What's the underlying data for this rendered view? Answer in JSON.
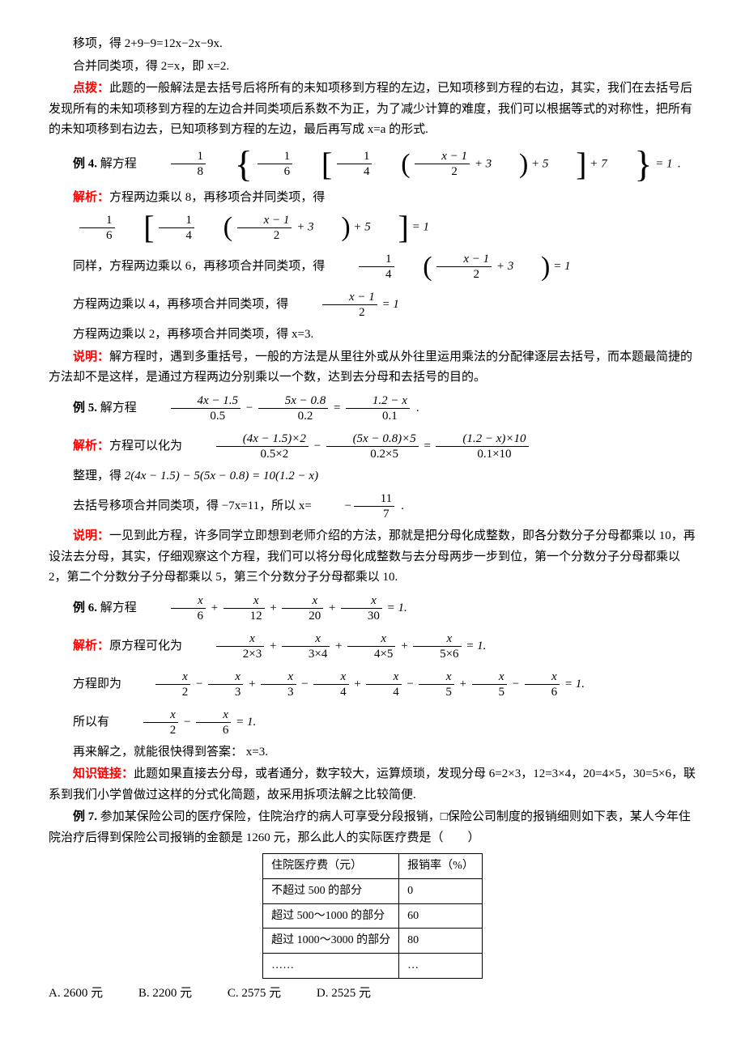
{
  "p1": "移项，得 2+9−9=12x−2x−9x.",
  "p2": "合并同类项，得 2=x，即 x=2.",
  "dianbo_label": "点拨：",
  "dianbo_text": "此题的一般解法是去括号后将所有的未知项移到方程的左边，已知项移到方程的右边，其实，我们在去括号后发现所有的未知项移到方程的左边合并同类项后系数不为正，为了减少计算的难度，我们可以根据等式的对称性，把所有的未知项移到右边去，已知项移到方程的左边，最后再写成 x=a 的形式.",
  "ex4_label": "例 4.",
  "ex4_text": " 解方程 ",
  "ex4_eq_suffix": "= 1",
  "ex4_frac18_n": "1",
  "ex4_frac18_d": "8",
  "ex4_frac16_n": "1",
  "ex4_frac16_d": "6",
  "ex4_frac14_n": "1",
  "ex4_frac14_d": "4",
  "ex4_frac_x_n": "x − 1",
  "ex4_frac_x_d": "2",
  "ex4_plus3": "+ 3",
  "ex4_plus5": "+ 5",
  "ex4_plus7": "+ 7",
  "ex4_dot": ".",
  "jiexi_label": "解析：",
  "ex4_s1_text": "方程两边乘以 8，再移项合并同类项，得 ",
  "ex4_s2_text": "同样，方程两边乘以 6，再移项合并同类项，得 ",
  "ex4_s3_text": "方程两边乘以 4，再移项合并同类项，得 ",
  "ex4_s4_text": "方程两边乘以 2，再移项合并同类项，得 x=3.",
  "shuoming_label": "说明：",
  "ex4_shuoming": "解方程时，遇到多重括号，一般的方法是从里往外或从外往里运用乘法的分配律逐层去括号，而本题最简捷的方法却不是这样，是通过方程两边分别乘以一个数，达到去分母和去括号的目的。",
  "ex5_label": "例 5.",
  "ex5_text": " 解方程 ",
  "ex5_f1_n": "4x − 1.5",
  "ex5_f1_d": "0.5",
  "ex5_f2_n": "5x − 0.8",
  "ex5_f2_d": "0.2",
  "ex5_f3_n": "1.2 − x",
  "ex5_f3_d": "0.1",
  "ex5_minus": " − ",
  "ex5_eq": " = ",
  "ex5_dot": ".",
  "ex5_s1_text": "方程可以化为 ",
  "ex5_g1_n": "(4x − 1.5)×2",
  "ex5_g1_d": "0.5×2",
  "ex5_g2_n": "(5x − 0.8)×5",
  "ex5_g2_d": "0.2×5",
  "ex5_g3_n": "(1.2 − x)×10",
  "ex5_g3_d": "0.1×10",
  "ex5_s2_pre": "整理，得 ",
  "ex5_s2_eq": "2(4x − 1.5) − 5(5x − 0.8) = 10(1.2 − x)",
  "ex5_s3_text": "去括号移项合并同类项，得 −7x=11，所以 x= ",
  "ex5_ans_n": "11",
  "ex5_ans_d": "7",
  "ex5_neg": "−",
  "ex5_s3_dot": ".",
  "ex5_shuoming": "一见到此方程，许多同学立即想到老师介绍的方法，那就是把分母化成整数，即各分数分子分母都乘以 10，再设法去分母，其实，仔细观察这个方程，我们可以将分母化成整数与去分母两步一步到位，第一个分数分子分母都乘以 2，第二个分数分子分母都乘以 5，第三个分数分子分母都乘以 10.",
  "ex6_label": "例 6.",
  "ex6_text": " 解方程 ",
  "ex6_f1_n": "x",
  "ex6_f1_d": "6",
  "ex6_f2_n": "x",
  "ex6_f2_d": "12",
  "ex6_f3_n": "x",
  "ex6_f3_d": "20",
  "ex6_f4_n": "x",
  "ex6_f4_d": "30",
  "ex6_plus": " + ",
  "ex6_eq1": " = 1.",
  "ex6_s1_text": "原方程可化为 ",
  "ex6_g1_d": "2×3",
  "ex6_g2_d": "3×4",
  "ex6_g3_d": "4×5",
  "ex6_g4_d": "5×6",
  "ex6_s2_text": "方程即为 ",
  "ex6_h1_d": "2",
  "ex6_h2_d": "3",
  "ex6_h3_d": "3",
  "ex6_h4_d": "4",
  "ex6_h5_d": "4",
  "ex6_h6_d": "5",
  "ex6_h7_d": "5",
  "ex6_h8_d": "6",
  "ex6_minus": " − ",
  "ex6_s3_text": "所以有 ",
  "ex6_s4_text": "再来解之，就能很快得到答案： x=3.",
  "zhishi_label": "知识链接：",
  "ex6_zhishi": "此题如果直接去分母，或者通分，数字较大，运算烦琐，发现分母 6=2×3，12=3×4，20=4×5，30=5×6，联系到我们小学曾做过这样的分式化简题，故采用拆项法解之比较简便.",
  "ex7_label": "例 7.",
  "ex7_text": " 参加某保险公司的医疗保险，住院治疗的病人可享受分段报销，□保险公司制度的报销细则如下表，某人今年住院治疗后得到保险公司报销的金额是 1260 元，那么此人的实际医疗费是（　　）",
  "table": {
    "header": [
      "住院医疗费（元）",
      "报销率（%）"
    ],
    "rows": [
      [
        "不超过 500 的部分",
        "0"
      ],
      [
        "超过 500～1000 的部分",
        "60"
      ],
      [
        "超过 1000～3000 的部分",
        "80"
      ],
      [
        "……",
        "…"
      ]
    ]
  },
  "choiceA": "A. 2600 元",
  "choiceB": "B. 2200 元",
  "choiceC": "C. 2575 元",
  "choiceD": "D. 2525 元"
}
